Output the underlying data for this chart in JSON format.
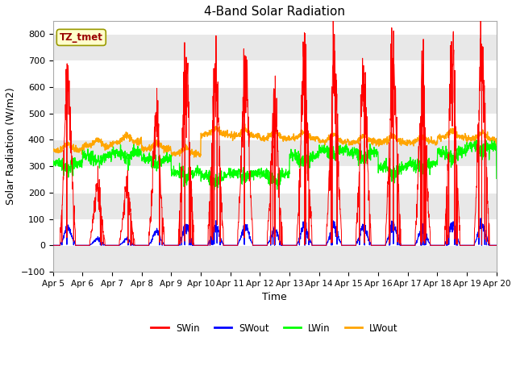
{
  "title": "4-Band Solar Radiation",
  "xlabel": "Time",
  "ylabel": "Solar Radiation (W/m2)",
  "label_box": "TZ_tmet",
  "ylim": [
    -100,
    850
  ],
  "yticks": [
    -100,
    0,
    100,
    200,
    300,
    400,
    500,
    600,
    700,
    800
  ],
  "date_labels": [
    "Apr 5",
    "Apr 6",
    "Apr 7",
    "Apr 8",
    "Apr 9",
    "Apr 10",
    "Apr 11",
    "Apr 12",
    "Apr 13",
    "Apr 14",
    "Apr 15",
    "Apr 16",
    "Apr 17",
    "Apr 18",
    "Apr 19",
    "Apr 20"
  ],
  "series_colors": {
    "SWin": "#ff0000",
    "SWout": "#0000ff",
    "LWin": "#00ff00",
    "LWout": "#ffa500"
  },
  "fig_facecolor": "#ffffff",
  "plot_bg_color": "#ffffff",
  "band_color": "#e8e8e8",
  "title_fontsize": 11,
  "axis_label_fontsize": 9,
  "tick_fontsize": 8
}
